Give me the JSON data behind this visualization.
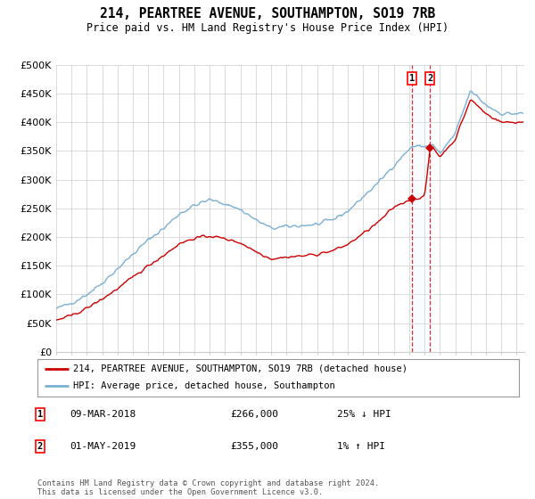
{
  "title": "214, PEARTREE AVENUE, SOUTHAMPTON, SO19 7RB",
  "subtitle": "Price paid vs. HM Land Registry's House Price Index (HPI)",
  "ylabel_ticks": [
    "£0",
    "£50K",
    "£100K",
    "£150K",
    "£200K",
    "£250K",
    "£300K",
    "£350K",
    "£400K",
    "£450K",
    "£500K"
  ],
  "ytick_values": [
    0,
    50000,
    100000,
    150000,
    200000,
    250000,
    300000,
    350000,
    400000,
    450000,
    500000
  ],
  "ylim": [
    0,
    500000
  ],
  "xlim_start": 1995.0,
  "xlim_end": 2025.5,
  "legend_line1": "214, PEARTREE AVENUE, SOUTHAMPTON, SO19 7RB (detached house)",
  "legend_line2": "HPI: Average price, detached house, Southampton",
  "sale1_date": "09-MAR-2018",
  "sale1_price": "£266,000",
  "sale1_hpi": "25% ↓ HPI",
  "sale1_x": 2018.19,
  "sale1_y": 266000,
  "sale2_date": "01-MAY-2019",
  "sale2_price": "£355,000",
  "sale2_hpi": "1% ↑ HPI",
  "sale2_x": 2019.37,
  "sale2_y": 355000,
  "hpi_color": "#7aafd4",
  "price_color": "#cc0000",
  "footer": "Contains HM Land Registry data © Crown copyright and database right 2024.\nThis data is licensed under the Open Government Licence v3.0.",
  "bg_color": "#ffffff",
  "grid_color": "#cccccc",
  "shade_color": "#ddeeff"
}
